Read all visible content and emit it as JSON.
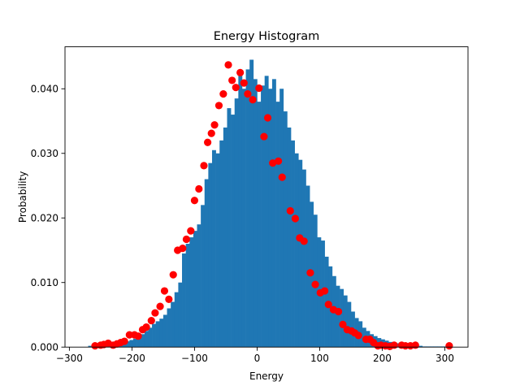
{
  "chart_data": {
    "type": "bar",
    "title": "Energy Histogram",
    "xlabel": "Energy",
    "ylabel": "Probability",
    "xlim": [
      -307,
      337
    ],
    "ylim": [
      0,
      0.0465
    ],
    "xticks": [
      -300,
      -200,
      -100,
      0,
      100,
      200,
      300
    ],
    "xtick_labels": [
      "−300",
      "−200",
      "−100",
      "0",
      "100",
      "200",
      "300"
    ],
    "yticks": [
      0,
      0.01,
      0.02,
      0.03,
      0.04
    ],
    "ytick_labels": [
      "0.000",
      "0.010",
      "0.020",
      "0.030",
      "0.040"
    ],
    "colors": {
      "histogram": "#1f77b4",
      "points": "#ff0000"
    },
    "series": [
      {
        "type": "histogram",
        "bin_width": 6,
        "bins_start": [
          -270,
          -264,
          -258,
          -252,
          -246,
          -240,
          -234,
          -228,
          -222,
          -216,
          -210,
          -204,
          -198,
          -192,
          -186,
          -180,
          -174,
          -168,
          -162,
          -156,
          -150,
          -144,
          -138,
          -132,
          -126,
          -120,
          -114,
          -108,
          -102,
          -96,
          -90,
          -84,
          -78,
          -72,
          -66,
          -60,
          -54,
          -48,
          -42,
          -36,
          -30,
          -24,
          -18,
          -12,
          -6,
          0,
          6,
          12,
          18,
          24,
          30,
          36,
          42,
          48,
          54,
          60,
          66,
          72,
          78,
          84,
          90,
          96,
          102,
          108,
          114,
          120,
          126,
          132,
          138,
          144,
          150,
          156,
          162,
          168,
          174,
          180,
          186,
          192,
          198,
          204,
          210,
          216,
          222,
          228,
          234,
          240,
          246,
          252,
          258,
          264,
          270,
          276,
          282,
          288,
          294,
          300,
          306
        ],
        "values": [
          0.0002,
          0.0002,
          0.0003,
          0.0003,
          0.0004,
          0.0004,
          0.0005,
          0.0005,
          0.0006,
          0.0007,
          0.0009,
          0.0011,
          0.0013,
          0.0016,
          0.002,
          0.0025,
          0.003,
          0.0036,
          0.004,
          0.0044,
          0.005,
          0.006,
          0.007,
          0.0085,
          0.01,
          0.0145,
          0.016,
          0.017,
          0.018,
          0.019,
          0.022,
          0.026,
          0.0285,
          0.0305,
          0.03,
          0.032,
          0.034,
          0.037,
          0.036,
          0.0385,
          0.042,
          0.04,
          0.043,
          0.0445,
          0.0415,
          0.038,
          0.0405,
          0.042,
          0.04,
          0.0415,
          0.038,
          0.04,
          0.0365,
          0.034,
          0.032,
          0.03,
          0.029,
          0.0275,
          0.025,
          0.0225,
          0.0205,
          0.017,
          0.0165,
          0.014,
          0.0125,
          0.011,
          0.0095,
          0.009,
          0.008,
          0.007,
          0.0055,
          0.0045,
          0.004,
          0.003,
          0.0025,
          0.002,
          0.0017,
          0.0014,
          0.0012,
          0.001,
          0.0008,
          0.0007,
          0.0006,
          0.0005,
          0.0004,
          0.0003,
          0.0003,
          0.0002,
          0.0002,
          0.0001,
          0.0001,
          0.0001,
          0.0001,
          0.0001,
          0.0001,
          0.0001,
          0.0001
        ]
      },
      {
        "type": "scatter",
        "x": [
          -259,
          -250,
          -245,
          -238,
          -230,
          -224,
          -218,
          -212,
          -204,
          -196,
          -190,
          -183,
          -177,
          -169,
          -163,
          -155,
          -148,
          -141,
          -134,
          -127,
          -119,
          -113,
          -106,
          -100,
          -93,
          -85,
          -79,
          -73,
          -68,
          -61,
          -54,
          -46,
          -40,
          -34,
          -27,
          -21,
          -15,
          -7,
          3,
          11,
          17,
          25,
          34,
          40,
          53,
          61,
          68,
          75,
          85,
          93,
          101,
          108,
          114,
          122,
          130,
          137,
          144,
          151,
          156,
          162,
          174,
          180,
          186,
          193,
          198,
          205,
          212,
          219,
          231,
          237,
          245,
          253,
          307
        ],
        "y": [
          0.0002,
          0.0003,
          0.0004,
          0.0006,
          0.0003,
          0.0005,
          0.0007,
          0.0009,
          0.0019,
          0.0019,
          0.0017,
          0.0027,
          0.0031,
          0.0041,
          0.0053,
          0.0063,
          0.0087,
          0.0074,
          0.0112,
          0.015,
          0.0153,
          0.0167,
          0.018,
          0.0227,
          0.0245,
          0.0281,
          0.0317,
          0.0331,
          0.0344,
          0.0374,
          0.0392,
          0.0437,
          0.0413,
          0.0402,
          0.0425,
          0.0409,
          0.0392,
          0.0383,
          0.0401,
          0.0326,
          0.0355,
          0.0285,
          0.0288,
          0.0263,
          0.0211,
          0.0199,
          0.0169,
          0.0164,
          0.0115,
          0.0097,
          0.0084,
          0.0087,
          0.0066,
          0.0058,
          0.0055,
          0.0035,
          0.0027,
          0.0025,
          0.0022,
          0.0018,
          0.0012,
          0.0012,
          0.0007,
          0.0002,
          0.0003,
          0.0002,
          0.0001,
          0.0003,
          0.0003,
          0.0002,
          0.0002,
          0.0003,
          0.0002
        ]
      }
    ]
  }
}
